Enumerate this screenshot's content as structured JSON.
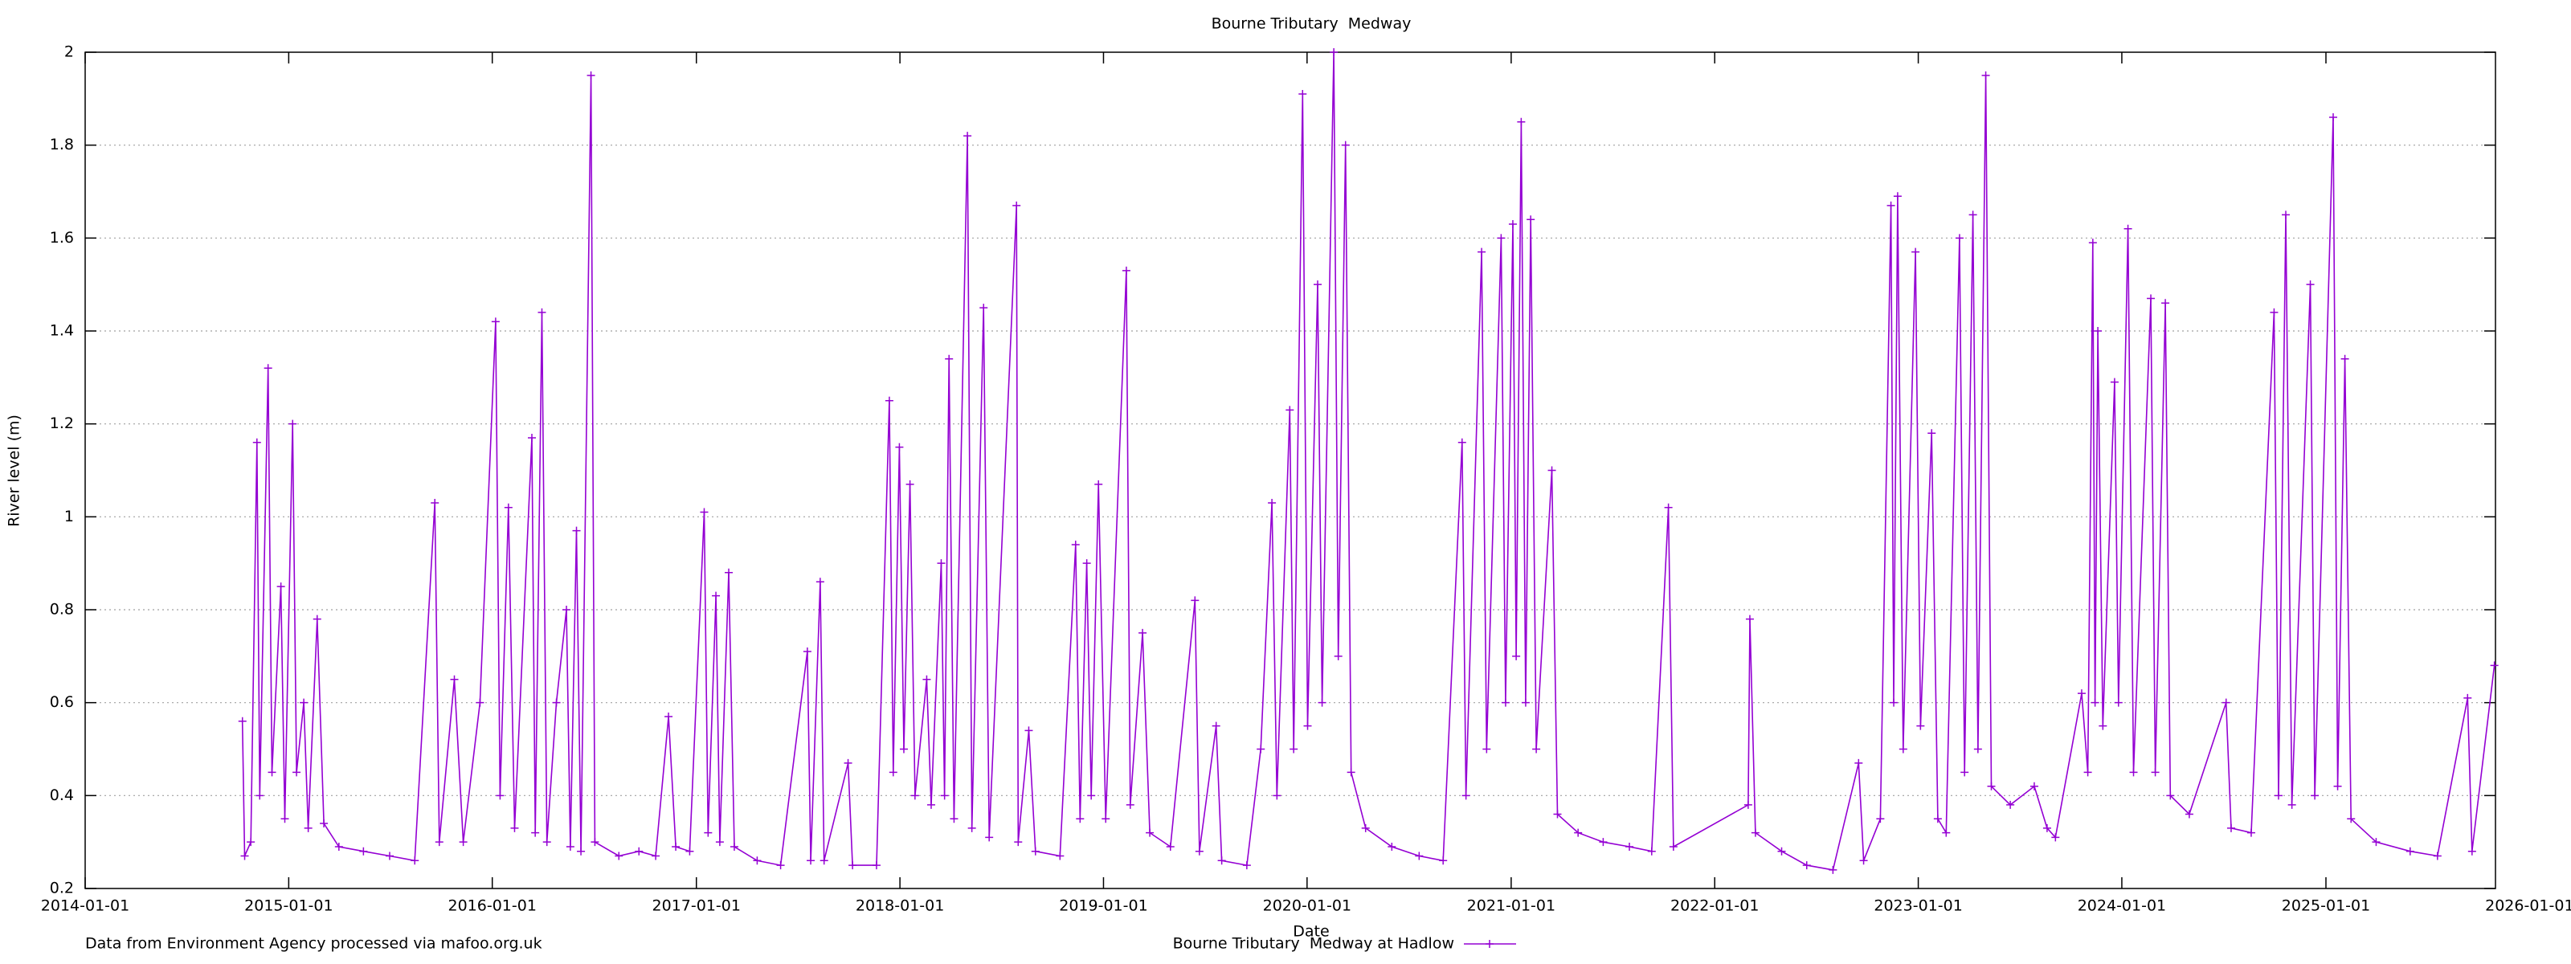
{
  "chart_data": {
    "type": "line",
    "title": "Bourne Tributary  Medway",
    "xlabel": "Date",
    "ylabel": "River level (m)",
    "note": "Data from Environment Agency processed via mafoo.org.uk",
    "x": [
      "2014-10-10",
      "2014-10-14",
      "2014-10-25",
      "2014-11-05",
      "2014-11-10",
      "2014-11-25",
      "2014-12-02",
      "2014-12-18",
      "2014-12-25",
      "2015-01-08",
      "2015-01-15",
      "2015-01-28",
      "2015-02-05",
      "2015-02-21",
      "2015-03-05",
      "2015-04-01",
      "2015-05-15",
      "2015-07-01",
      "2015-08-15",
      "2015-09-20",
      "2015-09-28",
      "2015-10-25",
      "2015-11-10",
      "2015-12-10",
      "2016-01-07",
      "2016-01-15",
      "2016-01-30",
      "2016-02-10",
      "2016-03-12",
      "2016-03-18",
      "2016-03-30",
      "2016-04-08",
      "2016-04-25",
      "2016-05-13",
      "2016-05-20",
      "2016-05-31",
      "2016-06-08",
      "2016-06-26",
      "2016-07-03",
      "2016-08-15",
      "2016-09-20",
      "2016-10-20",
      "2016-11-12",
      "2016-11-25",
      "2016-12-20",
      "2017-01-15",
      "2017-01-22",
      "2017-02-05",
      "2017-02-12",
      "2017-02-28",
      "2017-03-10",
      "2017-04-20",
      "2017-06-01",
      "2017-07-19",
      "2017-07-25",
      "2017-08-11",
      "2017-08-18",
      "2017-09-30",
      "2017-10-08",
      "2017-11-20",
      "2017-12-13",
      "2017-12-20",
      "2017-12-31",
      "2018-01-08",
      "2018-01-19",
      "2018-01-28",
      "2018-02-18",
      "2018-02-26",
      "2018-03-16",
      "2018-03-22",
      "2018-03-30",
      "2018-04-08",
      "2018-05-02",
      "2018-05-10",
      "2018-05-31",
      "2018-06-10",
      "2018-07-29",
      "2018-08-01",
      "2018-08-20",
      "2018-09-01",
      "2018-10-15",
      "2018-11-12",
      "2018-11-20",
      "2018-12-02",
      "2018-12-10",
      "2018-12-23",
      "2019-01-05",
      "2019-02-11",
      "2019-02-18",
      "2019-03-12",
      "2019-03-25",
      "2019-05-01",
      "2019-06-14",
      "2019-06-22",
      "2019-07-22",
      "2019-08-01",
      "2019-09-15",
      "2019-10-10",
      "2019-10-30",
      "2019-11-08",
      "2019-12-01",
      "2019-12-08",
      "2019-12-24",
      "2020-01-02",
      "2020-01-20",
      "2020-01-28",
      "2020-02-18",
      "2020-02-26",
      "2020-03-10",
      "2020-03-20",
      "2020-04-15",
      "2020-06-01",
      "2020-07-20",
      "2020-09-01",
      "2020-10-05",
      "2020-10-12",
      "2020-11-09",
      "2020-11-18",
      "2020-12-14",
      "2020-12-22",
      "2021-01-04",
      "2021-01-10",
      "2021-01-19",
      "2021-01-27",
      "2021-02-05",
      "2021-02-15",
      "2021-03-15",
      "2021-03-25",
      "2021-05-01",
      "2021-06-15",
      "2021-08-01",
      "2021-09-10",
      "2021-10-10",
      "2021-10-19",
      "2022-03-02",
      "2022-03-05",
      "2022-03-15",
      "2022-05-01",
      "2022-06-15",
      "2022-08-01",
      "2022-09-16",
      "2022-09-25",
      "2022-10-25",
      "2022-11-13",
      "2022-11-18",
      "2022-11-25",
      "2022-12-05",
      "2022-12-27",
      "2023-01-05",
      "2023-01-25",
      "2023-02-05",
      "2023-02-20",
      "2023-03-16",
      "2023-03-25",
      "2023-04-09",
      "2023-04-18",
      "2023-05-02",
      "2023-05-12",
      "2023-06-15",
      "2023-07-28",
      "2023-08-20",
      "2023-09-04",
      "2023-10-21",
      "2023-11-01",
      "2023-11-10",
      "2023-11-14",
      "2023-11-19",
      "2023-11-28",
      "2023-12-19",
      "2023-12-26",
      "2024-01-12",
      "2024-01-22",
      "2024-02-22",
      "2024-03-01",
      "2024-03-19",
      "2024-03-28",
      "2024-05-01",
      "2024-07-06",
      "2024-07-15",
      "2024-08-20",
      "2024-09-30",
      "2024-10-08",
      "2024-10-21",
      "2024-11-01",
      "2024-12-04",
      "2024-12-12",
      "2025-01-14",
      "2025-01-22",
      "2025-02-04",
      "2025-02-15",
      "2025-04-01",
      "2025-06-01",
      "2025-07-20",
      "2025-09-12",
      "2025-09-20",
      "2025-10-30"
    ],
    "series": [
      {
        "name": "Bourne Tributary  Medway at Hadlow",
        "color": "#9400d3",
        "values": [
          0.56,
          0.27,
          0.3,
          1.16,
          0.4,
          1.32,
          0.45,
          0.85,
          0.35,
          1.2,
          0.45,
          0.6,
          0.33,
          0.78,
          0.34,
          0.29,
          0.28,
          0.27,
          0.26,
          1.03,
          0.3,
          0.65,
          0.3,
          0.6,
          1.42,
          0.4,
          1.02,
          0.33,
          1.17,
          0.32,
          1.44,
          0.3,
          0.6,
          0.8,
          0.29,
          0.97,
          0.28,
          1.95,
          0.3,
          0.27,
          0.28,
          0.27,
          0.57,
          0.29,
          0.28,
          1.01,
          0.32,
          0.83,
          0.3,
          0.88,
          0.29,
          0.26,
          0.25,
          0.71,
          0.26,
          0.86,
          0.26,
          0.47,
          0.25,
          0.25,
          1.25,
          0.45,
          1.15,
          0.5,
          1.07,
          0.4,
          0.65,
          0.38,
          0.9,
          0.4,
          1.34,
          0.35,
          1.82,
          0.33,
          1.45,
          0.31,
          1.67,
          0.3,
          0.54,
          0.28,
          0.27,
          0.94,
          0.35,
          0.9,
          0.4,
          1.07,
          0.35,
          1.53,
          0.38,
          0.75,
          0.32,
          0.29,
          0.82,
          0.28,
          0.55,
          0.26,
          0.25,
          0.5,
          1.03,
          0.4,
          1.23,
          0.5,
          1.91,
          0.55,
          1.5,
          0.6,
          2.0,
          0.7,
          1.8,
          0.45,
          0.33,
          0.29,
          0.27,
          0.26,
          1.16,
          0.4,
          1.57,
          0.5,
          1.6,
          0.6,
          1.63,
          0.7,
          1.85,
          0.6,
          1.64,
          0.5,
          1.1,
          0.36,
          0.32,
          0.3,
          0.29,
          0.28,
          1.02,
          0.29,
          0.38,
          0.78,
          0.32,
          0.28,
          0.25,
          0.24,
          0.47,
          0.26,
          0.35,
          1.67,
          0.6,
          1.69,
          0.5,
          1.57,
          0.55,
          1.18,
          0.35,
          0.32,
          1.6,
          0.45,
          1.65,
          0.5,
          1.95,
          0.42,
          0.38,
          0.42,
          0.33,
          0.31,
          0.62,
          0.45,
          1.59,
          0.6,
          1.4,
          0.55,
          1.29,
          0.6,
          1.62,
          0.45,
          1.47,
          0.45,
          1.46,
          0.4,
          0.36,
          0.6,
          0.33,
          0.32,
          1.44,
          0.4,
          1.65,
          0.38,
          1.5,
          0.4,
          1.86,
          0.42,
          1.34,
          0.35,
          0.3,
          0.28,
          0.27,
          0.61,
          0.28,
          0.68
        ]
      }
    ],
    "xlim": [
      "2014-01-01",
      "2025-11-01"
    ],
    "xticks": [
      "2014-01-01",
      "2015-01-01",
      "2016-01-01",
      "2017-01-01",
      "2018-01-01",
      "2019-01-01",
      "2020-01-01",
      "2021-01-01",
      "2022-01-01",
      "2023-01-01",
      "2024-01-01",
      "2025-01-01",
      "2026-01-01"
    ],
    "ylim": [
      0.2,
      2
    ],
    "yticks": [
      0.2,
      0.4,
      0.6,
      0.8,
      1,
      1.2,
      1.4,
      1.6,
      1.8,
      2
    ],
    "grid": true
  }
}
